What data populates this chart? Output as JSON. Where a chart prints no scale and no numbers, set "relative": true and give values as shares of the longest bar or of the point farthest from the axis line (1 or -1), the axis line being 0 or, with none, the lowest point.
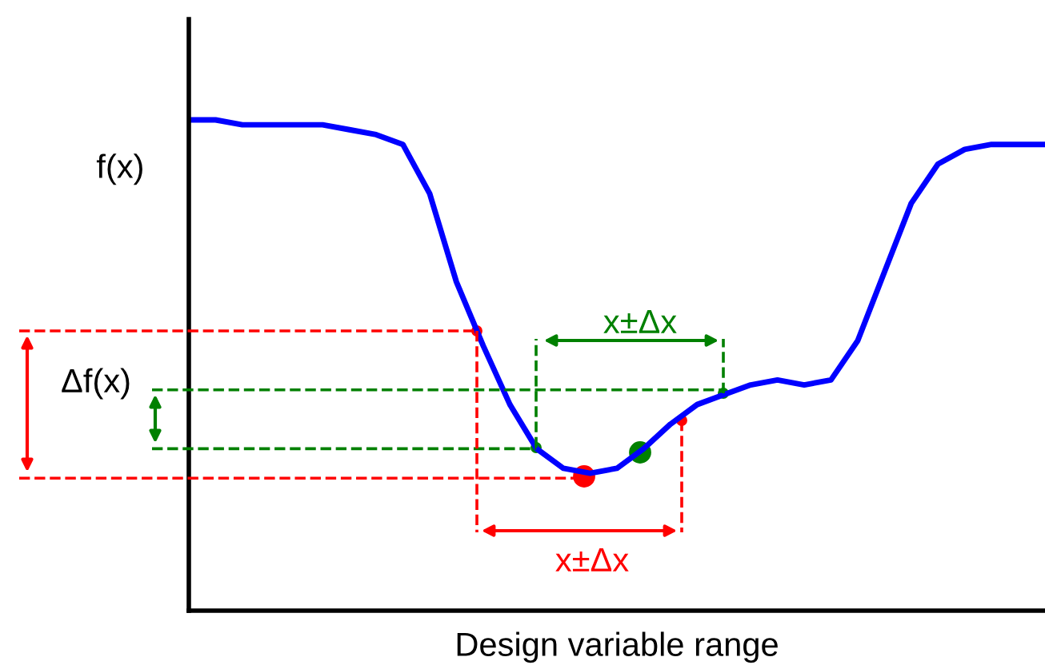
{
  "chart_data": {
    "type": "line",
    "relative": true,
    "xlabel": "Design variable range",
    "ylabel": "f(x)",
    "categories": [
      null,
      null,
      null,
      null,
      null,
      null,
      null,
      null,
      null,
      null,
      null,
      null,
      null,
      null,
      null,
      null,
      null,
      null,
      null,
      null,
      null,
      null,
      null,
      null,
      null,
      null,
      null,
      null,
      null,
      null,
      null,
      null,
      null
    ],
    "series": [
      {
        "color": "#0000ff",
        "values": [
          1.0,
          1.0,
          0.99,
          0.99,
          0.99,
          0.99,
          0.98,
          0.97,
          0.95,
          0.85,
          0.67,
          0.54,
          0.42,
          0.33,
          0.29,
          0.28,
          0.29,
          0.33,
          0.38,
          0.42,
          0.44,
          0.46,
          0.47,
          0.46,
          0.47,
          0.55,
          0.69,
          0.83,
          0.91,
          0.94,
          0.95,
          0.95,
          0.95
        ]
      }
    ],
    "annotations": [
      "x±Δx",
      "x±Δx",
      "Δf(x)"
    ],
    "ref_lines": [
      {
        "axis": "y",
        "value": 0.57,
        "color": "#ff0000",
        "line_style": "dashed"
      },
      {
        "axis": "y",
        "value": 0.27,
        "color": "#ff0000",
        "line_style": "dashed"
      },
      {
        "axis": "y",
        "value": 0.45,
        "color": "#008000",
        "line_style": "dashed"
      },
      {
        "axis": "y",
        "value": 0.33,
        "color": "#008000",
        "line_style": "dashed"
      }
    ],
    "grid": false,
    "legend": false,
    "marker": "none",
    "line_style": "solid"
  }
}
